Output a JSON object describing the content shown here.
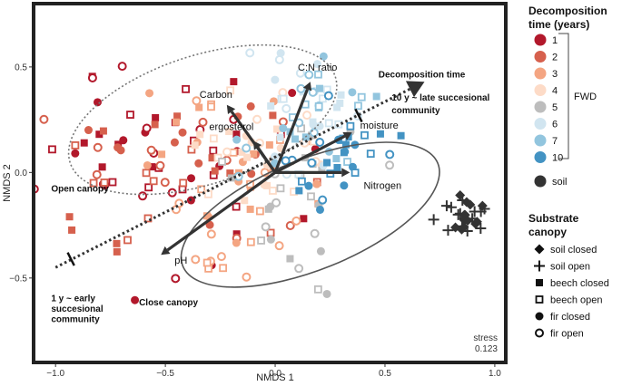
{
  "chart_data": {
    "type": "scatter",
    "xlabel": "NMDS 1",
    "ylabel": "NMDS 2",
    "xlim": [
      -1.1,
      1.05
    ],
    "ylim": [
      -0.9,
      0.8
    ],
    "x_ticks": [
      -1.0,
      -0.5,
      0.0,
      0.5,
      1.0
    ],
    "x_tick_labels": [
      "−1.0",
      "−0.5",
      "0.0",
      "0.5",
      "1.0"
    ],
    "y_ticks": [
      0.5,
      0.0,
      -0.5
    ],
    "y_tick_labels": [
      "0.5",
      "0.0",
      "−0.5"
    ],
    "grid": false,
    "stress_label": "stress",
    "stress_value": "0.123",
    "vectors": [
      {
        "name": "Carbon",
        "x": -0.22,
        "y": 0.32
      },
      {
        "name": "C:N ratio",
        "x": 0.16,
        "y": 0.43
      },
      {
        "name": "ergosterol",
        "x": -0.1,
        "y": 0.15
      },
      {
        "name": "moisture",
        "x": 0.35,
        "y": 0.19
      },
      {
        "name": "Nitrogen",
        "x": 0.34,
        "y": 0.0
      },
      {
        "name": "pH",
        "x": -0.52,
        "y": -0.39
      }
    ],
    "gradient_arrow": {
      "name": "Decomposition time",
      "from": [
        -1.0,
        -0.45
      ],
      "to": [
        0.68,
        0.43
      ]
    },
    "gradient_ticks": [
      {
        "x": -0.93,
        "y": -0.41
      },
      {
        "x": 0.38,
        "y": 0.27
      }
    ],
    "ellipses": [
      {
        "name": "Open canopy",
        "cx": -0.33,
        "cy": 0.25,
        "rx": 0.73,
        "ry": 0.35,
        "angle": 18,
        "style": "dotted"
      },
      {
        "name": "Close canopy",
        "cx": 0.16,
        "cy": -0.2,
        "rx": 0.72,
        "ry": 0.3,
        "angle": 22,
        "style": "solid"
      }
    ],
    "annotations": [
      {
        "text": "Open canopy",
        "x": -1.02,
        "y": -0.09,
        "bold": true
      },
      {
        "text": "Close canopy",
        "x": -0.62,
        "y": -0.63,
        "bold": true
      },
      {
        "text": "1 y ~ early",
        "x": -1.02,
        "y": -0.61,
        "bold": true
      },
      {
        "text": "succesional",
        "x": -1.02,
        "y": -0.66,
        "bold": true
      },
      {
        "text": "community",
        "x": -1.02,
        "y": -0.71,
        "bold": true
      },
      {
        "text": "10 y ~ late succesional",
        "x": 0.53,
        "y": 0.34,
        "bold": true
      },
      {
        "text": "community",
        "x": 0.53,
        "y": 0.28,
        "bold": true
      },
      {
        "text": "Decomposition time",
        "x": 0.47,
        "y": 0.45,
        "bold": true
      }
    ],
    "series": [
      {
        "name": "1",
        "color": "#b2182b",
        "cx": -0.55,
        "cy": 0.05,
        "sx": 0.25,
        "sy": 0.22,
        "n": 48
      },
      {
        "name": "2",
        "color": "#d6604d",
        "cx": -0.4,
        "cy": -0.05,
        "sx": 0.25,
        "sy": 0.2,
        "n": 44
      },
      {
        "name": "3",
        "color": "#f4a582",
        "cx": -0.2,
        "cy": -0.05,
        "sx": 0.2,
        "sy": 0.18,
        "n": 44
      },
      {
        "name": "4",
        "color": "#fddbc7",
        "cx": -0.05,
        "cy": 0.05,
        "sx": 0.15,
        "sy": 0.15,
        "n": 30
      },
      {
        "name": "5",
        "color": "#bdbdbd",
        "cx": 0.1,
        "cy": -0.1,
        "sx": 0.15,
        "sy": 0.2,
        "n": 26
      },
      {
        "name": "6",
        "color": "#d1e5f0",
        "cx": 0.05,
        "cy": 0.3,
        "sx": 0.15,
        "sy": 0.18,
        "n": 28
      },
      {
        "name": "7",
        "color": "#92c5de",
        "cx": 0.2,
        "cy": 0.2,
        "sx": 0.15,
        "sy": 0.15,
        "n": 28
      },
      {
        "name": "10",
        "color": "#4393c3",
        "cx": 0.3,
        "cy": 0.1,
        "sx": 0.13,
        "sy": 0.12,
        "n": 30
      },
      {
        "name": "soil",
        "color": "#333333",
        "cx": 0.85,
        "cy": -0.22,
        "sx": 0.06,
        "sy": 0.05,
        "n": 28
      }
    ]
  },
  "legend": {
    "time_title_1": "Decomposition",
    "time_title_2": "time (years)",
    "time_items": [
      {
        "label": "1",
        "color": "#b2182b"
      },
      {
        "label": "2",
        "color": "#d6604d"
      },
      {
        "label": "3",
        "color": "#f4a582"
      },
      {
        "label": "4",
        "color": "#fddbc7"
      },
      {
        "label": "5",
        "color": "#bdbdbd"
      },
      {
        "label": "6",
        "color": "#d1e5f0"
      },
      {
        "label": "7",
        "color": "#92c5de"
      },
      {
        "label": "10",
        "color": "#4393c3"
      }
    ],
    "fwd_label": "FWD",
    "soil_label": "soil",
    "soil_color": "#333333",
    "substrate_title_1": "Substrate",
    "substrate_title_2": "canopy",
    "substrate_items": [
      {
        "label": "soil closed",
        "shape": "diamond"
      },
      {
        "label": "soil open",
        "shape": "cross"
      },
      {
        "label": "beech closed",
        "shape": "square-filled"
      },
      {
        "label": "beech open",
        "shape": "square-open"
      },
      {
        "label": "fir closed",
        "shape": "circle-filled"
      },
      {
        "label": "fir open",
        "shape": "circle-open"
      }
    ]
  }
}
